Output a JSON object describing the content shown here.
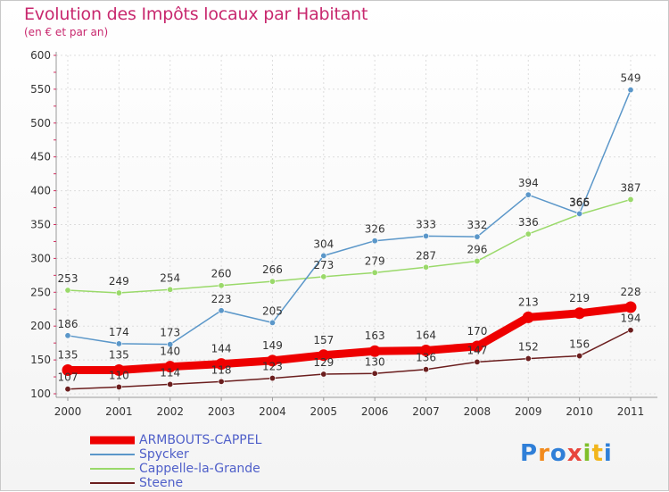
{
  "title": "Evolution des Impôts locaux par Habitant",
  "subtitle": "(en € et par an)",
  "logo": {
    "letters": [
      {
        "ch": "P",
        "color": "#2f7fd8"
      },
      {
        "ch": "r",
        "color": "#f28a1c"
      },
      {
        "ch": "o",
        "color": "#2f7fd8"
      },
      {
        "ch": "x",
        "color": "#e8453c"
      },
      {
        "ch": "i",
        "color": "#7fbf2a"
      },
      {
        "ch": "t",
        "color": "#f2b51c"
      },
      {
        "ch": "i",
        "color": "#2f7fd8"
      }
    ]
  },
  "chart_data": {
    "type": "line",
    "x": [
      "2000",
      "2001",
      "2002",
      "2003",
      "2004",
      "2005",
      "2006",
      "2007",
      "2008",
      "2009",
      "2010",
      "2011"
    ],
    "ylim": [
      100,
      600
    ],
    "yticks": [
      100,
      150,
      200,
      250,
      300,
      350,
      400,
      450,
      500,
      550,
      600
    ],
    "legend_position": "bottom-left",
    "series": [
      {
        "name": "ARMBOUTS-CAPPEL",
        "color": "#ee0000",
        "values": [
          135,
          135,
          140,
          144,
          149,
          157,
          163,
          164,
          170,
          213,
          219,
          228
        ]
      },
      {
        "name": "Spycker",
        "color": "#5b97c9",
        "values": [
          186,
          174,
          173,
          223,
          205,
          304,
          326,
          333,
          332,
          394,
          366,
          549
        ]
      },
      {
        "name": "Cappelle-la-Grande",
        "color": "#9ad96a",
        "values": [
          253,
          249,
          254,
          260,
          266,
          273,
          279,
          287,
          296,
          336,
          365,
          387
        ]
      },
      {
        "name": "Steene",
        "color": "#6b1e1e",
        "values": [
          107,
          110,
          114,
          118,
          123,
          129,
          130,
          136,
          147,
          152,
          156,
          194
        ]
      }
    ]
  }
}
